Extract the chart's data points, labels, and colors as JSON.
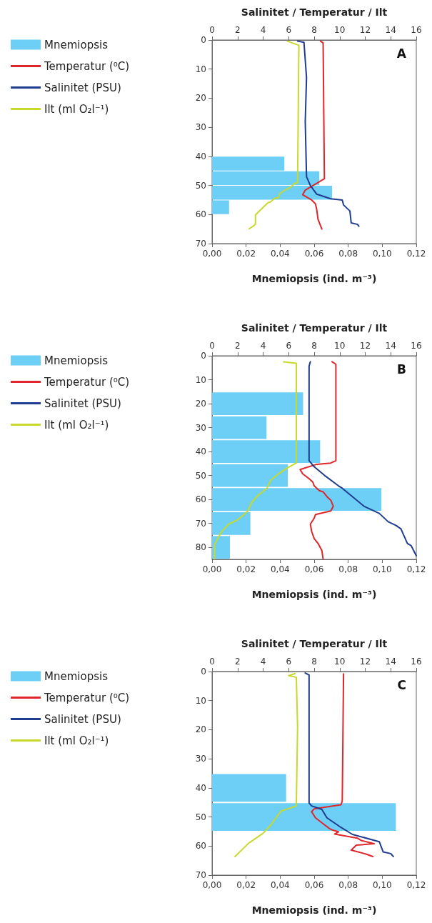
{
  "chart_data": [
    {
      "type": "bar",
      "orientation": "horizontal",
      "annotations": [
        "A"
      ],
      "xlabel": "Mnemiopsis (ind. m⁻³)",
      "x2label": "Salinitet / Temperatur / Ilt",
      "legend": "left",
      "grid": false,
      "marker": "none",
      "line_style": "solid",
      "xlim": [
        0,
        0.12
      ],
      "xticks": [
        {
          "value": 0,
          "label": "0,00"
        },
        {
          "value": 0.02,
          "label": "0,02"
        },
        {
          "value": 0.04,
          "label": "0,04"
        },
        {
          "value": 0.06,
          "label": "0,06"
        },
        {
          "value": 0.08,
          "label": "0,08"
        },
        {
          "value": 0.1,
          "label": "0,10"
        },
        {
          "value": 0.12,
          "label": "0,12"
        }
      ],
      "x2lim": [
        0,
        16
      ],
      "x2ticks": [
        0,
        2,
        4,
        6,
        8,
        10,
        12,
        14,
        16
      ],
      "ylim": [
        70,
        0
      ],
      "yticks": [
        0,
        10,
        20,
        30,
        40,
        50,
        60,
        70
      ],
      "series": [
        {
          "name": "Mnemiopsis",
          "color": "#6dcff6",
          "x": [
            42.5,
            47.5,
            52.5,
            57.5
          ],
          "values": [
            0.0425,
            0.063,
            0.0705,
            0.01
          ]
        },
        {
          "name": "Temperatur (⁰C)",
          "type": "line",
          "axis": "x2",
          "color": "#e0262b",
          "x": [
            0.4,
            1,
            47.7,
            51.6,
            53.2,
            55,
            56.3,
            58.3,
            61.6,
            65
          ],
          "values": [
            8.5,
            8.7,
            8.8,
            7.3,
            7.1,
            7.8,
            8.1,
            8.2,
            8.3,
            8.6
          ]
        },
        {
          "name": "Salinitet (PSU)",
          "type": "line",
          "axis": "x2",
          "color": "#1f3c8f",
          "x": [
            0.4,
            0.8,
            13,
            28,
            47,
            50,
            53,
            54.6,
            55,
            56.7,
            58.8,
            62.9,
            63.4,
            64
          ],
          "values": [
            6.7,
            7.2,
            7.4,
            7.3,
            7.4,
            7.7,
            8.2,
            9.3,
            10.2,
            10.3,
            10.8,
            10.9,
            11.4,
            11.5
          ]
        },
        {
          "name": "Ilt (ml O₂l⁻¹)",
          "type": "line",
          "axis": "x2",
          "color": "#c8d92b",
          "x": [
            0.4,
            1.8,
            49,
            49.5,
            50.5,
            51.4,
            52.8,
            54.2,
            54.4,
            55.6,
            55.9,
            57.1,
            60.1,
            63.3,
            64.1,
            64.9
          ],
          "values": [
            5.9,
            6.8,
            6.7,
            6.4,
            6.2,
            5.8,
            5.3,
            5.2,
            4.9,
            4.6,
            4.4,
            4.1,
            3.4,
            3.4,
            3.2,
            2.9
          ]
        }
      ]
    },
    {
      "type": "bar",
      "orientation": "horizontal",
      "annotations": [
        "B"
      ],
      "xlabel": "Mnemiopsis (ind. m⁻³)",
      "x2label": "Salinitet / Temperatur / Ilt",
      "legend": "left",
      "grid": false,
      "marker": "none",
      "line_style": "solid",
      "xlim": [
        0,
        0.12
      ],
      "xticks": [
        {
          "value": 0,
          "label": "0,00"
        },
        {
          "value": 0.02,
          "label": "0,02"
        },
        {
          "value": 0.04,
          "label": "0,04"
        },
        {
          "value": 0.06,
          "label": "0,06"
        },
        {
          "value": 0.08,
          "label": "0,08"
        },
        {
          "value": 0.1,
          "label": "0,10"
        },
        {
          "value": 0.12,
          "label": "0,12"
        }
      ],
      "x2lim": [
        0,
        16
      ],
      "x2ticks": [
        0,
        2,
        4,
        6,
        8,
        10,
        12,
        14,
        16
      ],
      "ylim": [
        85,
        0
      ],
      "yticks": [
        0,
        10,
        20,
        30,
        40,
        50,
        60,
        70,
        80
      ],
      "series": [
        {
          "name": "Mnemiopsis",
          "color": "#6dcff6",
          "x": [
            20,
            30,
            40,
            50,
            60,
            70,
            80
          ],
          "values": [
            0.0535,
            0.032,
            0.0635,
            0.0445,
            0.0995,
            0.0225,
            0.0105
          ]
        },
        {
          "name": "Temperatur (⁰C)",
          "type": "line",
          "axis": "x2",
          "color": "#e0262b",
          "x": [
            2.5,
            3.5,
            43.8,
            44.8,
            45.3,
            47.5,
            49.3,
            51.3,
            52.8,
            54.3,
            56.3,
            56.8,
            58.8,
            60.3,
            62.8,
            64.8,
            66.3,
            67.8,
            70.3,
            73.3,
            76.3,
            78.3,
            81.3,
            84.8
          ],
          "values": [
            9.4,
            9.7,
            9.7,
            9.3,
            8.2,
            6.9,
            7.1,
            7.6,
            7.9,
            8,
            8.4,
            8.7,
            9,
            9.3,
            9.5,
            9.3,
            8.1,
            8,
            7.7,
            7.8,
            8,
            8.3,
            8.6,
            8.7
          ]
        },
        {
          "name": "Salinitet (PSU)",
          "type": "line",
          "axis": "x2",
          "color": "#1f3c8f",
          "x": [
            2.5,
            4.3,
            43.8,
            46.3,
            50.3,
            54.3,
            55.3,
            62.8,
            65.8,
            69.3,
            70.8,
            72.3,
            78.3,
            79.3,
            83.5
          ],
          "values": [
            7.7,
            7.6,
            7.6,
            8,
            8.9,
            9.9,
            10.2,
            11.9,
            13.1,
            13.8,
            14.4,
            14.8,
            15.3,
            15.6,
            16
          ]
        },
        {
          "name": "Ilt (ml O₂l⁻¹)",
          "type": "line",
          "axis": "x2",
          "color": "#c8d92b",
          "x": [
            2.5,
            3.1,
            44.8,
            46.8,
            49.3,
            52,
            55.3,
            58.3,
            61.3,
            64.8,
            66.8,
            68.8,
            70.3,
            73.8,
            78.8,
            84.8
          ],
          "values": [
            5.6,
            6.6,
            6.6,
            5.9,
            5.2,
            4.6,
            4.3,
            3.6,
            3.1,
            2.8,
            2.4,
            1.9,
            1.3,
            0.7,
            0.2,
            0.2
          ]
        }
      ]
    },
    {
      "type": "bar",
      "orientation": "horizontal",
      "annotations": [
        "C"
      ],
      "xlabel": "Mnemiopsis (ind. m⁻³)",
      "x2label": "Salinitet / Temperatur / Ilt",
      "legend": "left",
      "grid": false,
      "marker": "none",
      "line_style": "solid",
      "xlim": [
        0,
        0.12
      ],
      "xticks": [
        {
          "value": 0,
          "label": "0,00"
        },
        {
          "value": 0.02,
          "label": "0,02"
        },
        {
          "value": 0.04,
          "label": "0,04"
        },
        {
          "value": 0.06,
          "label": "0,06"
        },
        {
          "value": 0.08,
          "label": "0,08"
        },
        {
          "value": 0.1,
          "label": "0,10"
        },
        {
          "value": 0.12,
          "label": "0,12"
        }
      ],
      "x2lim": [
        0,
        16
      ],
      "x2ticks": [
        0,
        2,
        4,
        6,
        8,
        10,
        12,
        14,
        16
      ],
      "ylim": [
        70,
        0
      ],
      "yticks": [
        0,
        10,
        20,
        30,
        40,
        50,
        60,
        70
      ],
      "series": [
        {
          "name": "Mnemiopsis",
          "color": "#6dcff6",
          "x": [
            40,
            50
          ],
          "values": [
            0.0435,
            0.108
          ]
        },
        {
          "name": "Temperatur (⁰C)",
          "type": "line",
          "axis": "x2",
          "color": "#e0262b",
          "x": [
            0.8,
            44.5,
            45.8,
            47.2,
            48.2,
            50.3,
            52.3,
            54,
            54.6,
            55.1,
            55.9,
            57.3,
            58.1,
            59.2,
            59.7,
            61.4,
            62.8,
            63.6
          ],
          "values": [
            10.3,
            10.2,
            10.1,
            8,
            7.8,
            8.1,
            8.7,
            9.2,
            9.5,
            9.9,
            9.6,
            11.4,
            11.7,
            12.7,
            11.3,
            10.9,
            12.1,
            12.6
          ]
        },
        {
          "name": "Salinitet (PSU)",
          "type": "line",
          "axis": "x2",
          "color": "#1f3c8f",
          "x": [
            0.5,
            1.2,
            45.2,
            46.2,
            47.4,
            50.3,
            53.6,
            56,
            58.5,
            62,
            62.6,
            63.6
          ],
          "values": [
            7.3,
            7.6,
            7.6,
            7.8,
            8.6,
            9,
            10.1,
            11,
            13.1,
            13.4,
            14,
            14.2
          ]
        },
        {
          "name": "Ilt (ml O₂l⁻¹)",
          "type": "line",
          "axis": "x2",
          "color": "#c8d92b",
          "x": [
            0.7,
            1.4,
            2,
            19,
            46.2,
            48,
            52.8,
            55.6,
            58.9,
            61,
            63.6
          ],
          "values": [
            6.5,
            6,
            6.6,
            6.7,
            6.6,
            5.4,
            4.6,
            4,
            2.9,
            2.4,
            1.8
          ]
        }
      ]
    }
  ]
}
